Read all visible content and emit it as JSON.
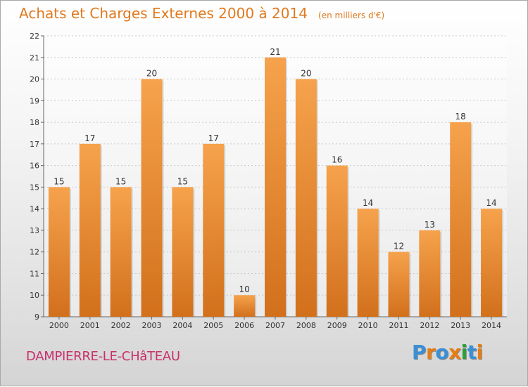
{
  "page": {
    "title": "Achats et Charges Externes 2000 à 2014",
    "unit": "(en milliers d'€)",
    "city": "DAMPIERRE-LE-CHâTEAU",
    "logo_text": "Proxiti",
    "colors": {
      "title": "#e07a1e",
      "city": "#c8306a",
      "bar_light": "#f6a24c",
      "bar_dark": "#d2701c",
      "grid": "#c9c9c9"
    },
    "logo_colors": [
      "#3a8fd6",
      "#e67d14",
      "#3a8fd6",
      "#e67d14",
      "#2e9e3a",
      "#3a8fd6",
      "#e67d14"
    ]
  },
  "chart_data": {
    "type": "bar",
    "title": "Achats et Charges Externes 2000 à 2014",
    "subtitle": "(en milliers d'€)",
    "categories": [
      "2000",
      "2001",
      "2002",
      "2003",
      "2004",
      "2005",
      "2006",
      "2007",
      "2008",
      "2009",
      "2010",
      "2011",
      "2012",
      "2013",
      "2014"
    ],
    "values": [
      15,
      17,
      15,
      20,
      15,
      17,
      10,
      21,
      20,
      16,
      14,
      12,
      13,
      18,
      14
    ],
    "ylim": [
      9,
      22
    ],
    "yticks": [
      9,
      10,
      11,
      12,
      13,
      14,
      15,
      16,
      17,
      18,
      19,
      20,
      21,
      22
    ],
    "grid": true,
    "data_labels": true,
    "legend": "none"
  }
}
